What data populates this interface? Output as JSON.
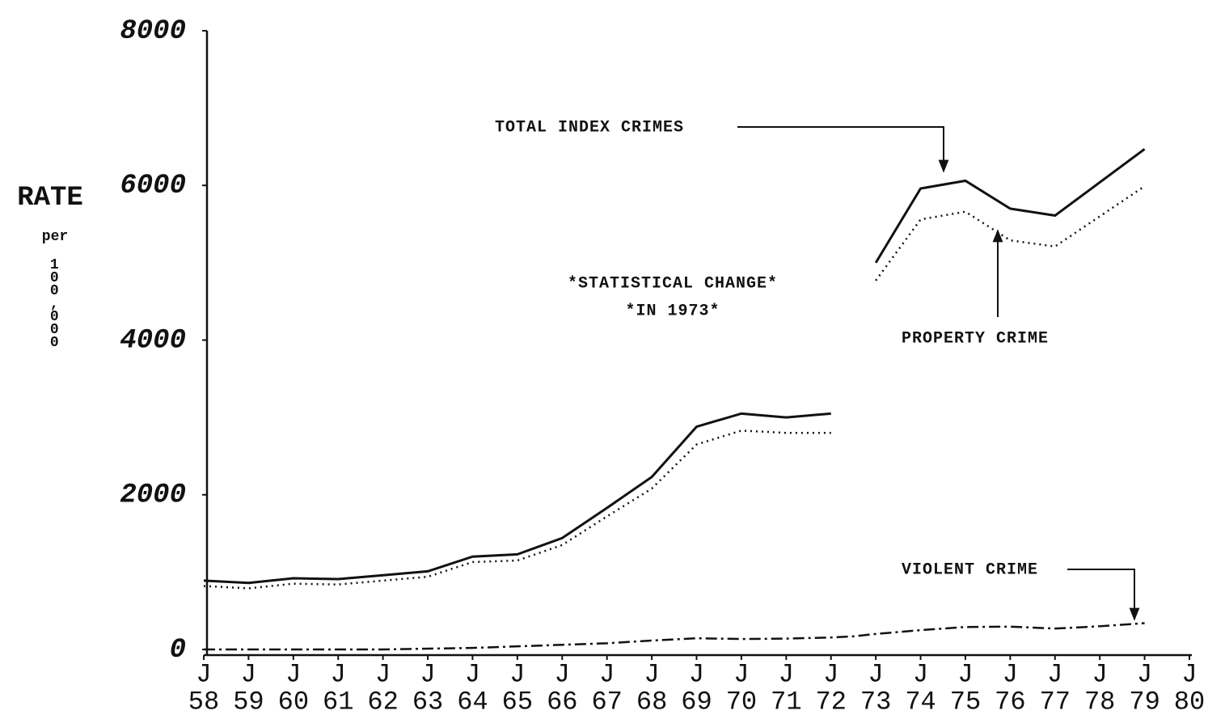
{
  "chart_data": {
    "type": "line",
    "y_label": "RATE",
    "y_label_sub": "per",
    "y_label_unit": "100,000",
    "annotations": [
      "*STATISTICAL CHANGE*",
      "*IN 1973*"
    ],
    "xtick_prefix": "J",
    "x": [
      1958,
      1959,
      1960,
      1961,
      1962,
      1963,
      1964,
      1965,
      1966,
      1967,
      1968,
      1969,
      1970,
      1971,
      1972,
      1972.5,
      1973,
      1974,
      1975,
      1976,
      1977,
      1978,
      1979
    ],
    "series": [
      {
        "name": "TOTAL INDEX CRIMES",
        "color": "#111111",
        "dash": "solid",
        "values": [
          890,
          860,
          920,
          910,
          960,
          1010,
          1200,
          1230,
          1440,
          1830,
          2230,
          2880,
          3050,
          3000,
          3050,
          null,
          5000,
          5960,
          6060,
          5700,
          5610,
          6040,
          6470
        ]
      },
      {
        "name": "PROPERTY CRIME",
        "color": "#111111",
        "dash": "dotted",
        "values": [
          820,
          790,
          850,
          840,
          890,
          940,
          1130,
          1150,
          1350,
          1720,
          2080,
          2650,
          2830,
          2800,
          2800,
          null,
          4770,
          5560,
          5660,
          5290,
          5210,
          5600,
          5990
        ]
      },
      {
        "name": "VIOLENT CRIME",
        "color": "#111111",
        "dash": "dashdot",
        "values": [
          0,
          0,
          0,
          0,
          0,
          10,
          20,
          40,
          60,
          80,
          115,
          145,
          135,
          140,
          155,
          170,
          200,
          250,
          290,
          295,
          270,
          300,
          340
        ]
      }
    ],
    "xlim": [
      1958,
      1980
    ],
    "xticks": [
      {
        "value": 1958,
        "label": "58"
      },
      {
        "value": 1959,
        "label": "59"
      },
      {
        "value": 1960,
        "label": "60"
      },
      {
        "value": 1961,
        "label": "61"
      },
      {
        "value": 1962,
        "label": "62"
      },
      {
        "value": 1963,
        "label": "63"
      },
      {
        "value": 1964,
        "label": "64"
      },
      {
        "value": 1965,
        "label": "65"
      },
      {
        "value": 1966,
        "label": "66"
      },
      {
        "value": 1967,
        "label": "67"
      },
      {
        "value": 1968,
        "label": "68"
      },
      {
        "value": 1969,
        "label": "69"
      },
      {
        "value": 1970,
        "label": "70"
      },
      {
        "value": 1971,
        "label": "71"
      },
      {
        "value": 1972,
        "label": "72"
      },
      {
        "value": 1973,
        "label": "73"
      },
      {
        "value": 1974,
        "label": "74"
      },
      {
        "value": 1975,
        "label": "75"
      },
      {
        "value": 1976,
        "label": "76"
      },
      {
        "value": 1977,
        "label": "77"
      },
      {
        "value": 1978,
        "label": "78"
      },
      {
        "value": 1979,
        "label": "79"
      },
      {
        "value": 1980,
        "label": "80"
      }
    ],
    "ylim": [
      0,
      8000
    ],
    "yticks": [
      0,
      2000,
      4000,
      6000,
      8000
    ],
    "grid": false
  }
}
